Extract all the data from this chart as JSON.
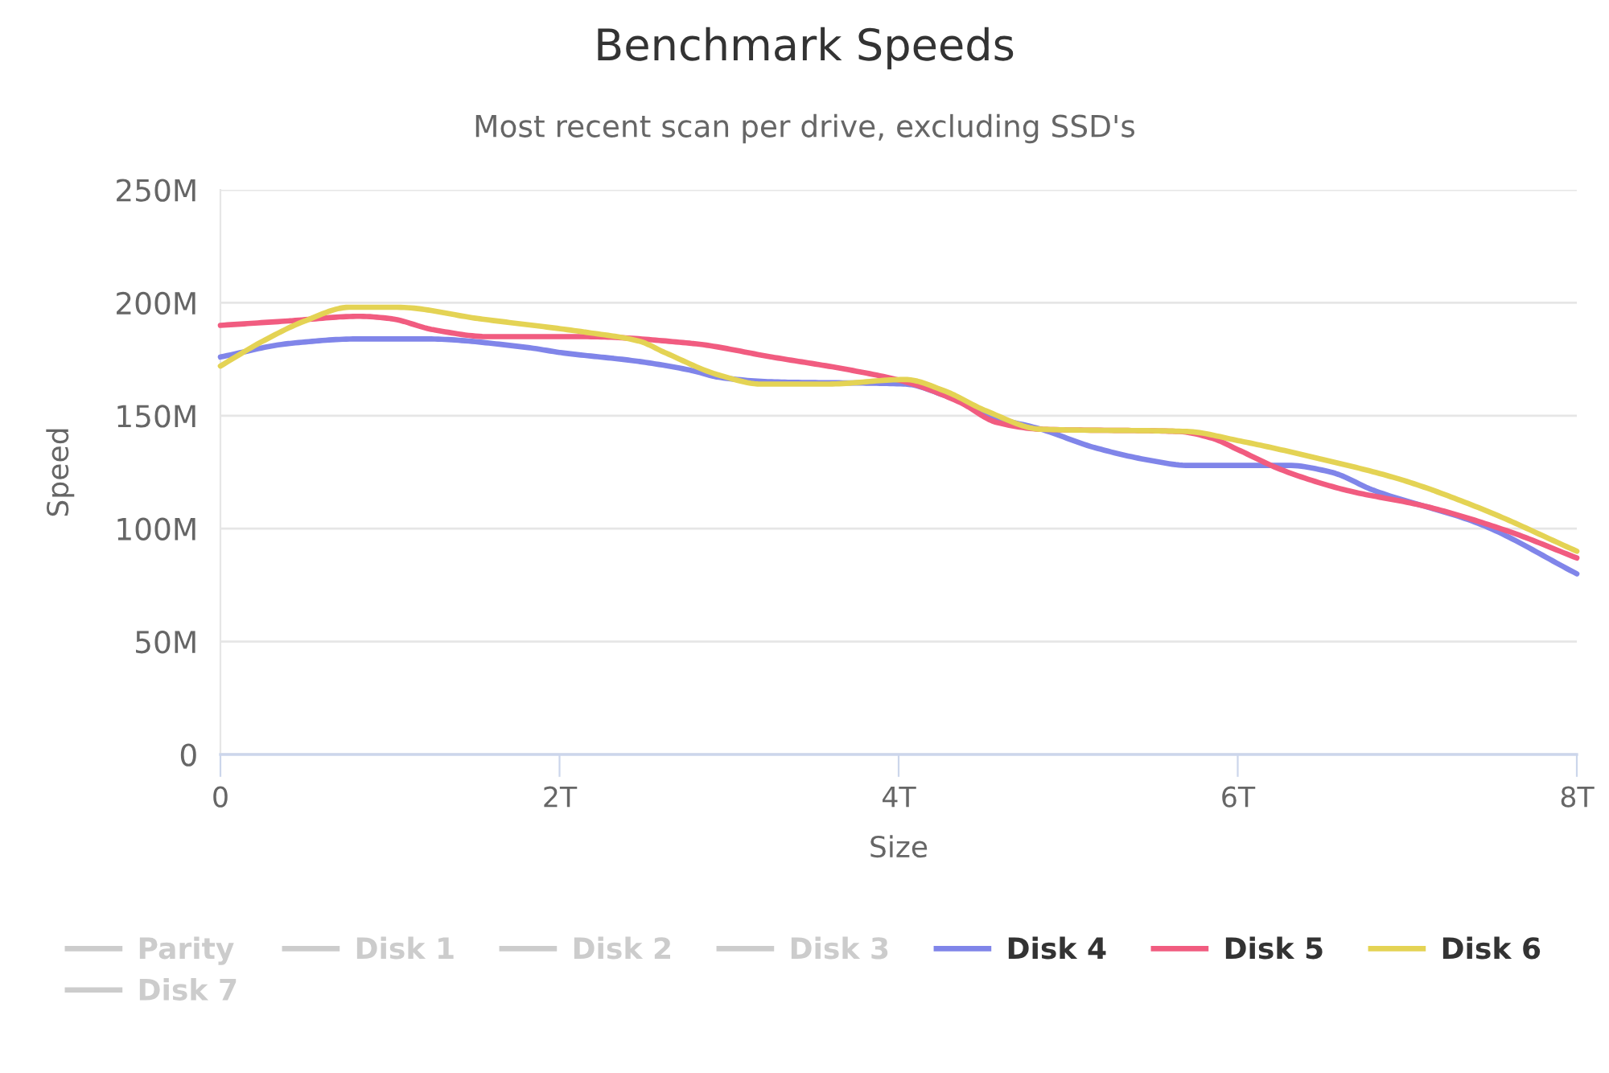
{
  "chart_data": {
    "type": "line",
    "title": "Benchmark Speeds",
    "subtitle": "Most recent scan per drive, excluding SSD's",
    "xlabel": "Size",
    "ylabel": "Speed",
    "xlim": [
      0,
      8
    ],
    "xticks": [
      0,
      {
        "value": 2,
        "label": "2T"
      },
      {
        "value": 4,
        "label": "4T"
      },
      {
        "value": 6,
        "label": "6T"
      },
      {
        "value": 8,
        "label": "8T"
      }
    ],
    "ylim": [
      0,
      250
    ],
    "yticks": [
      0,
      {
        "value": 50,
        "label": "50M"
      },
      {
        "value": 100,
        "label": "100M"
      },
      {
        "value": 150,
        "label": "150M"
      },
      {
        "value": 200,
        "label": "200M"
      },
      {
        "value": 250,
        "label": "250M"
      }
    ],
    "grid": "y",
    "legend": "bottom",
    "series": [
      {
        "name": "Parity",
        "color": "#cccccc"
      },
      {
        "name": "Disk 1",
        "color": "#cccccc"
      },
      {
        "name": "Disk 2",
        "color": "#cccccc"
      },
      {
        "name": "Disk 3",
        "color": "#cccccc"
      },
      {
        "name": "Disk 4",
        "color": "#8085e9",
        "x": [
          0,
          0.41,
          0.82,
          1.2,
          1.83,
          2.0,
          2.47,
          2.78,
          2.94,
          3.25,
          4.04,
          4.27,
          4.58,
          4.84,
          5.15,
          5.5,
          5.7,
          6.3,
          6.55,
          6.8,
          7.43,
          8
        ],
        "values": [
          176,
          182,
          184,
          184,
          180,
          178,
          174,
          170,
          167,
          165,
          164,
          159,
          149,
          144,
          136,
          130,
          128,
          128,
          125,
          117,
          102,
          80
        ]
      },
      {
        "name": "Disk 5",
        "color": "#f15c80",
        "x": [
          0,
          0.41,
          0.82,
          1.0,
          1.26,
          1.58,
          2.15,
          2.78,
          3.25,
          3.73,
          4.04,
          4.36,
          4.58,
          4.84,
          5.65,
          5.85,
          6.0,
          6.26,
          6.64,
          7.1,
          7.59,
          8
        ],
        "values": [
          190,
          192,
          194,
          193,
          188,
          185,
          185,
          182,
          176,
          170,
          165,
          156,
          147,
          144,
          143,
          140,
          135,
          126,
          117,
          110,
          99,
          87
        ]
      },
      {
        "name": "Disk 6",
        "color": "#e4d354",
        "x": [
          0,
          0.25,
          0.5,
          0.76,
          1.04,
          1.52,
          2.15,
          2.47,
          2.62,
          2.94,
          3.19,
          3.57,
          4.04,
          4.27,
          4.52,
          4.84,
          5.7,
          6.0,
          6.48,
          6.95,
          7.43,
          8
        ],
        "values": [
          172,
          183,
          192,
          198,
          198,
          193,
          187,
          183,
          178,
          168,
          164,
          164,
          166,
          161,
          152,
          144,
          143,
          139,
          131,
          122,
          109,
          90
        ]
      },
      {
        "name": "Disk 7",
        "color": "#cccccc"
      }
    ]
  }
}
